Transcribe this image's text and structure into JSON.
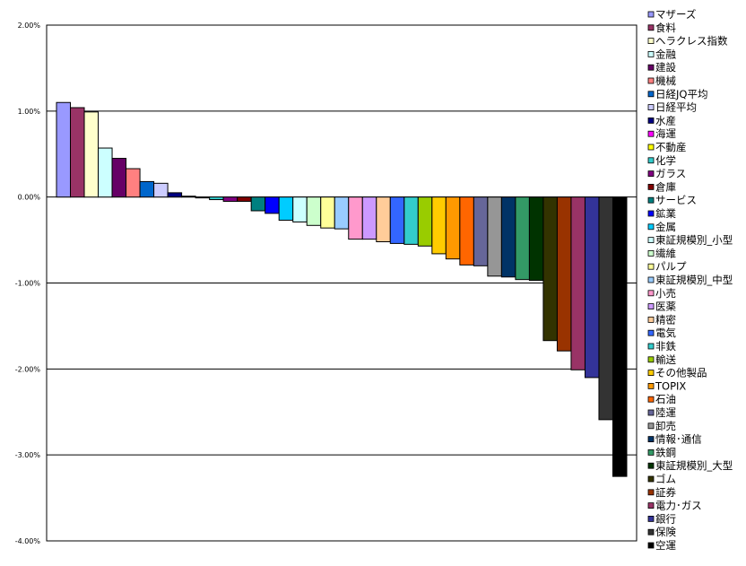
{
  "chart_data": {
    "type": "bar",
    "title": "",
    "xlabel": "",
    "ylabel": "",
    "ylim": [
      -4,
      2
    ],
    "yticks": [
      "2.00%",
      "1.00%",
      "0.00%",
      "-1.00%",
      "-2.00%",
      "-3.00%",
      "-4.00%"
    ],
    "grid": true,
    "legend_position": "right",
    "unit": "%",
    "series": [
      {
        "name": "マザーズ",
        "value": 1.1,
        "color": "#9999FF"
      },
      {
        "name": "食料",
        "value": 1.04,
        "color": "#993366"
      },
      {
        "name": "ヘラクレス指数",
        "value": 0.99,
        "color": "#FFFFCC"
      },
      {
        "name": "金融",
        "value": 0.57,
        "color": "#CCFFFF"
      },
      {
        "name": "建設",
        "value": 0.45,
        "color": "#660066"
      },
      {
        "name": "機械",
        "value": 0.33,
        "color": "#FF8080"
      },
      {
        "name": "日経JQ平均",
        "value": 0.18,
        "color": "#0066CC"
      },
      {
        "name": "日経平均",
        "value": 0.16,
        "color": "#CCCCFF"
      },
      {
        "name": "水産",
        "value": 0.05,
        "color": "#000080"
      },
      {
        "name": "海運",
        "value": 0.01,
        "color": "#FF00FF"
      },
      {
        "name": "不動産",
        "value": -0.01,
        "color": "#FFFF00"
      },
      {
        "name": "化学",
        "value": -0.03,
        "color": "#33CCCC"
      },
      {
        "name": "ガラス",
        "value": -0.05,
        "color": "#800080"
      },
      {
        "name": "倉庫",
        "value": -0.05,
        "color": "#800000"
      },
      {
        "name": "サービス",
        "value": -0.16,
        "color": "#008080"
      },
      {
        "name": "鉱業",
        "value": -0.19,
        "color": "#0000FF"
      },
      {
        "name": "金属",
        "value": -0.27,
        "color": "#00CCFF"
      },
      {
        "name": "東証規模別_小型",
        "value": -0.29,
        "color": "#CCFFFF"
      },
      {
        "name": "繊維",
        "value": -0.33,
        "color": "#CCFFCC"
      },
      {
        "name": "パルプ",
        "value": -0.36,
        "color": "#FFFF99"
      },
      {
        "name": "東証規模別_中型",
        "value": -0.37,
        "color": "#99CCFF"
      },
      {
        "name": "小売",
        "value": -0.49,
        "color": "#FF99CC"
      },
      {
        "name": "医薬",
        "value": -0.49,
        "color": "#CC99FF"
      },
      {
        "name": "精密",
        "value": -0.52,
        "color": "#FFCC99"
      },
      {
        "name": "電気",
        "value": -0.54,
        "color": "#3366FF"
      },
      {
        "name": "非鉄",
        "value": -0.55,
        "color": "#33CCCC"
      },
      {
        "name": "輸送",
        "value": -0.57,
        "color": "#99CC00"
      },
      {
        "name": "その他製品",
        "value": -0.66,
        "color": "#FFCC00"
      },
      {
        "name": "TOPIX",
        "value": -0.72,
        "color": "#FF9900"
      },
      {
        "name": "石油",
        "value": -0.79,
        "color": "#FF6600"
      },
      {
        "name": "陸運",
        "value": -0.8,
        "color": "#666699"
      },
      {
        "name": "卸売",
        "value": -0.92,
        "color": "#969696"
      },
      {
        "name": "情報･通信",
        "value": -0.93,
        "color": "#003366"
      },
      {
        "name": "鉄鋼",
        "value": -0.96,
        "color": "#339966"
      },
      {
        "name": "東証規模別_大型",
        "value": -0.97,
        "color": "#003300"
      },
      {
        "name": "ゴム",
        "value": -1.67,
        "color": "#333300"
      },
      {
        "name": "証券",
        "value": -1.79,
        "color": "#993300"
      },
      {
        "name": "電力･ガス",
        "value": -2.01,
        "color": "#993366"
      },
      {
        "name": "銀行",
        "value": -2.1,
        "color": "#333399"
      },
      {
        "name": "保険",
        "value": -2.59,
        "color": "#333333"
      },
      {
        "name": "空運",
        "value": -3.25,
        "color": "#000000"
      }
    ]
  }
}
